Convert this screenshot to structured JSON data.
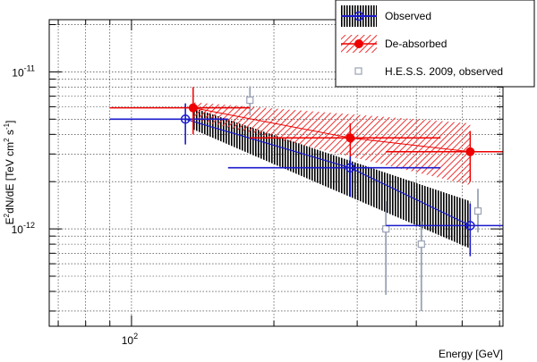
{
  "chart_data": {
    "type": "scatter",
    "xlabel": "Energy [GeV]",
    "ylabel_main": "E",
    "ylabel_sup": "2",
    "ylabel_rest": "dN/dE [TeV cm",
    "ylabel_sup2": "2",
    "ylabel_rest2": " s",
    "ylabel_sup3": "-1",
    "ylabel_end": "]",
    "x_scale": "log",
    "y_scale": "log",
    "xlim": [
      67,
      610
    ],
    "ylim": [
      2.4e-13,
      2.15e-11
    ],
    "grid": true,
    "legend_position": "top-right",
    "x_tick_labels": [
      {
        "value": 100,
        "base": "10",
        "exp": "2"
      }
    ],
    "y_tick_labels": [
      {
        "value": 1e-11,
        "base": "10",
        "exp": "-11"
      },
      {
        "value": 1e-12,
        "base": "10",
        "exp": "-12"
      }
    ],
    "series": [
      {
        "name": "Observed",
        "color": "#1a1acc",
        "marker": "open-circle",
        "points": [
          {
            "x": 130,
            "y": 5e-12,
            "xlo": 90,
            "xhi": 160,
            "ylo": 3.45e-12,
            "yhi": 6.3e-12
          },
          {
            "x": 290,
            "y": 2.45e-12,
            "xlo": 160,
            "xhi": 450,
            "ylo": 1.6e-12,
            "yhi": 2.9e-12
          },
          {
            "x": 520,
            "y": 1.05e-12,
            "xlo": 345,
            "xhi": 800,
            "ylo": 6.7e-13,
            "yhi": 1.45e-12
          }
        ]
      },
      {
        "name": "De-absorbed",
        "color": "#ee0000",
        "marker": "filled-circle",
        "points": [
          {
            "x": 135,
            "y": 5.9e-12,
            "xlo": 90,
            "xhi": 178,
            "ylo": 4e-12,
            "yhi": 8e-12
          },
          {
            "x": 290,
            "y": 3.8e-12,
            "xlo": 178,
            "xhi": 450,
            "ylo": 2.9e-12,
            "yhi": 4.7e-12
          },
          {
            "x": 520,
            "y": 3.1e-12,
            "xlo": 345,
            "xhi": 800,
            "ylo": 2e-12,
            "yhi": 4.2e-12
          }
        ]
      },
      {
        "name": "H.E.S.S. 2009, observed",
        "color": "#9aa2b4",
        "marker": "open-square",
        "points": [
          {
            "x": 178,
            "y": 6.6e-12,
            "ylo": 5.3e-12,
            "yhi": 8.1e-12
          },
          {
            "x": 345,
            "y": 1e-12,
            "ylo": 3.8e-13,
            "yhi": 1.5e-12
          },
          {
            "x": 410,
            "y": 8e-13,
            "ylo": 3e-13,
            "yhi": 1.12e-12
          },
          {
            "x": 540,
            "y": 1.3e-12,
            "ylo": 9.5e-13,
            "yhi": 1.8e-12
          }
        ]
      }
    ],
    "bands": [
      {
        "series": "Observed",
        "fill": "vertical-hatch",
        "color": "#000000",
        "x": [
          135,
          520
        ],
        "upper": [
          5.9e-12,
          1.5e-12
        ],
        "lower": [
          4.3e-12,
          7.5e-13
        ]
      },
      {
        "series": "De-absorbed",
        "fill": "diagonal-hatch",
        "color": "#ee0000",
        "x": [
          135,
          520
        ],
        "upper": [
          6.4e-12,
          4.7e-12
        ],
        "lower": [
          5e-12,
          1.9e-12
        ]
      }
    ]
  }
}
